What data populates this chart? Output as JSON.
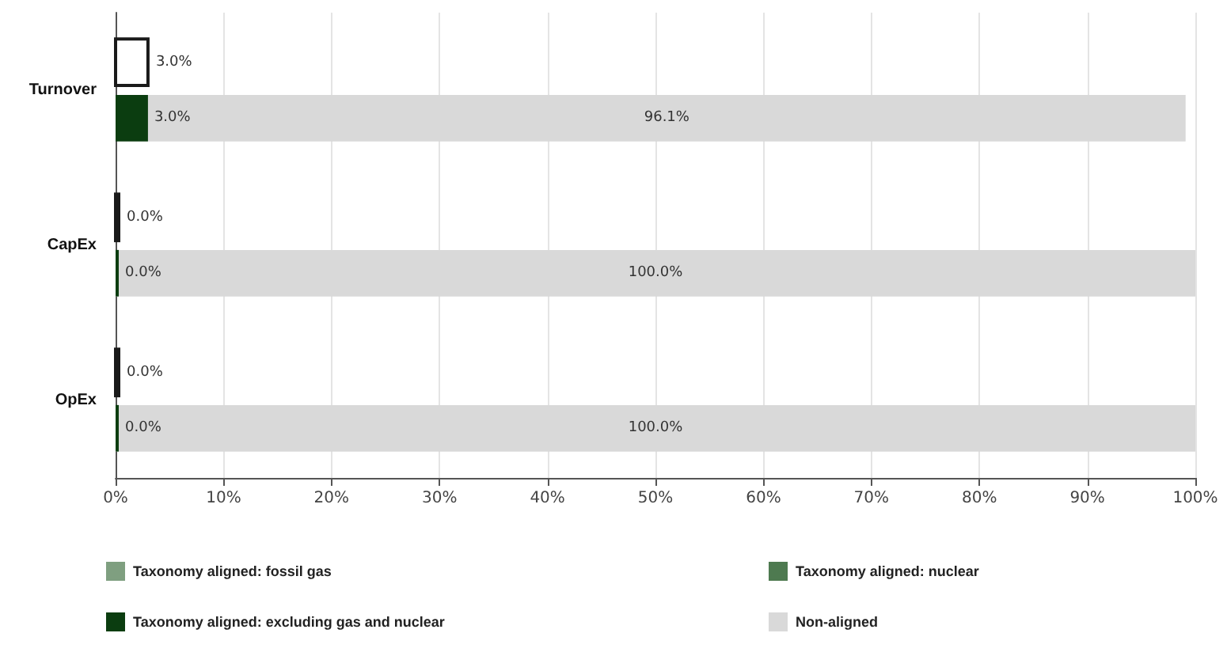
{
  "chart_data": {
    "type": "bar",
    "orientation": "horizontal",
    "categories": [
      "Turnover",
      "CapEx",
      "OpEx"
    ],
    "series": [
      {
        "color": "#ffffff",
        "values": [
          3.0,
          0.0,
          0.0
        ],
        "value_labels": [
          "3.0%",
          "0.0%",
          "0.0%"
        ]
      },
      {
        "name": "Taxonomy aligned: fossil gas",
        "color": "#7f9f80",
        "values": [
          null,
          null,
          null
        ]
      },
      {
        "name": "Taxonomy aligned: nuclear",
        "color": "#4e7a50",
        "values": [
          null,
          null,
          null
        ]
      },
      {
        "name": "Taxonomy aligned: excluding gas and nuclear",
        "color": "#0b3d10",
        "values": [
          3.0,
          0.0,
          0.0
        ],
        "base": [
          0,
          0,
          0
        ],
        "value_labels": [
          "3.0%",
          "0.0%",
          "0.0%"
        ]
      },
      {
        "name": "Non-aligned",
        "color": "#d9d9d9",
        "values": [
          96.1,
          100.0,
          100.0
        ],
        "base": [
          3.0,
          0.0,
          0.0
        ],
        "value_labels": [
          "96.1%",
          "100.0%",
          "100.0%"
        ]
      }
    ],
    "xlim": [
      0,
      100
    ],
    "xticks": [
      {
        "value": 0,
        "label": "0%"
      },
      {
        "value": 10,
        "label": "10%"
      },
      {
        "value": 20,
        "label": "20%"
      },
      {
        "value": 30,
        "label": "30%"
      },
      {
        "value": 40,
        "label": "40%"
      },
      {
        "value": 50,
        "label": "50%"
      },
      {
        "value": 60,
        "label": "60%"
      },
      {
        "value": 70,
        "label": "70%"
      },
      {
        "value": 80,
        "label": "80%"
      },
      {
        "value": 90,
        "label": "90%"
      },
      {
        "value": 100,
        "label": "100%"
      }
    ],
    "grid": "x",
    "legend": "bottom"
  }
}
